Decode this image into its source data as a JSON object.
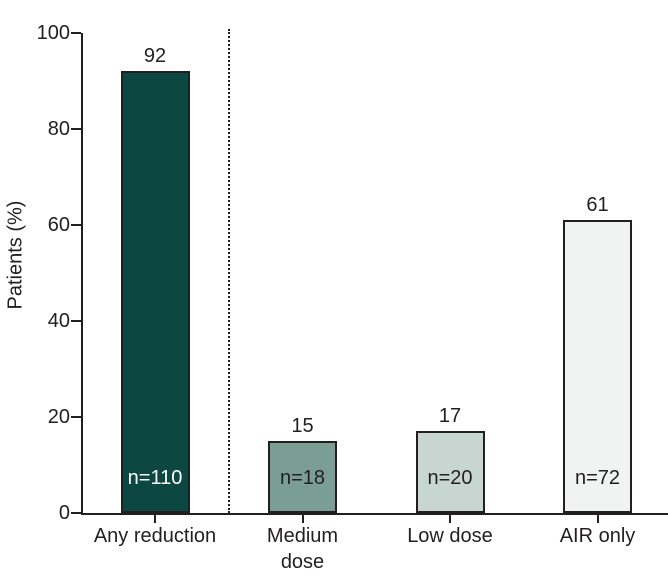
{
  "chart_data": {
    "type": "bar",
    "title": "",
    "xlabel": "",
    "ylabel": "Patients (%)",
    "ylim": [
      0,
      100
    ],
    "yticks": [
      0,
      20,
      40,
      60,
      80,
      100
    ],
    "categories": [
      "Any reduction",
      "Medium\ndose",
      "Low dose",
      "AIR only"
    ],
    "values": [
      92,
      15,
      17,
      61
    ],
    "n_labels": [
      "n=110",
      "n=18",
      "n=20",
      "n=72"
    ],
    "bar_colors": [
      "#0c4741",
      "#7b9e94",
      "#c7d6d0",
      "#f1f3f2"
    ],
    "n_label_colors": [
      "#ffffff",
      "#231f20",
      "#231f20",
      "#231f20"
    ],
    "bar_border_color": "#231f20",
    "axis_color": "#231f20",
    "grid": false,
    "legend": false,
    "divider": {
      "style": "dotted",
      "between": [
        "Any reduction",
        "Medium dose"
      ]
    }
  }
}
